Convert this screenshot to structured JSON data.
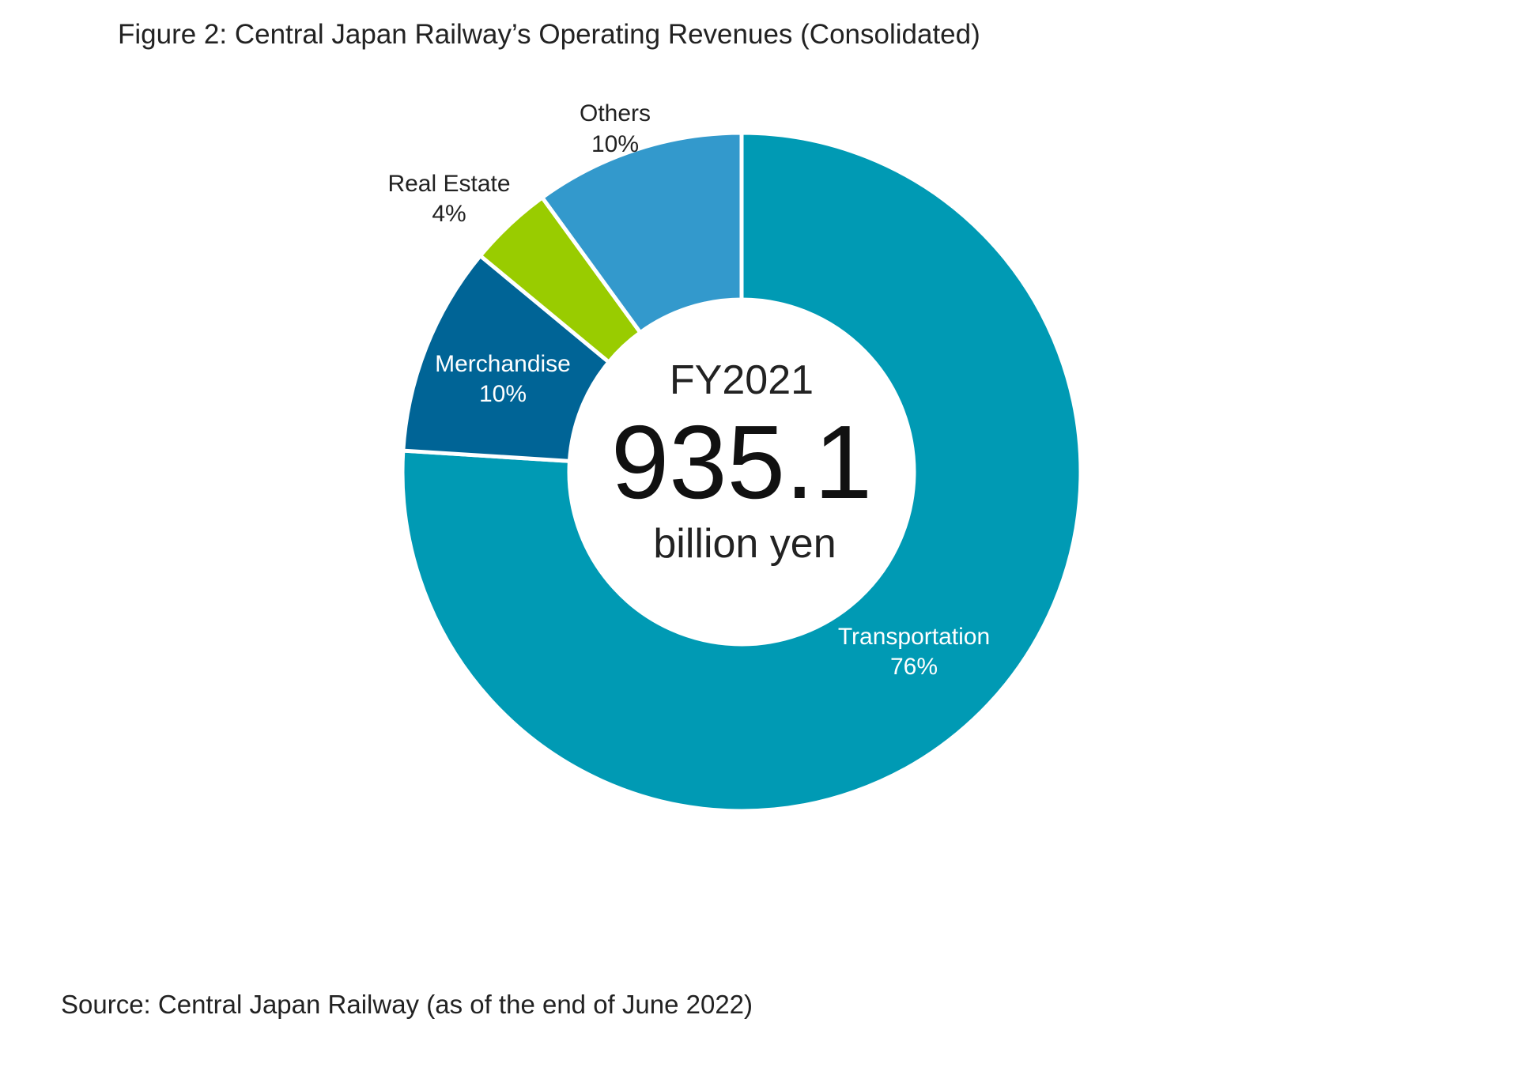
{
  "chart_data": {
    "type": "pie",
    "donut": true,
    "title": "Figure 2: Central Japan Railway’s Operating Revenues (Consolidated)",
    "source": "Source: Central Japan Railway (as of the end of June 2022)",
    "center": {
      "line1": "FY2021",
      "value": "935.1",
      "unit": "billion yen"
    },
    "slices": [
      {
        "name": "Transportation",
        "label": "76%",
        "value": 76,
        "color": "#009ab4",
        "label_color": "#ffffff"
      },
      {
        "name": "Merchandise",
        "label": "10%",
        "value": 10,
        "color": "#006496",
        "label_color": "#ffffff"
      },
      {
        "name": "Real Estate",
        "label": "4%",
        "value": 4,
        "color": "#99cc00",
        "label_color": "#222222"
      },
      {
        "name": "Others",
        "label": "10%",
        "value": 10,
        "color": "#3399cc",
        "label_color": "#222222"
      }
    ]
  }
}
